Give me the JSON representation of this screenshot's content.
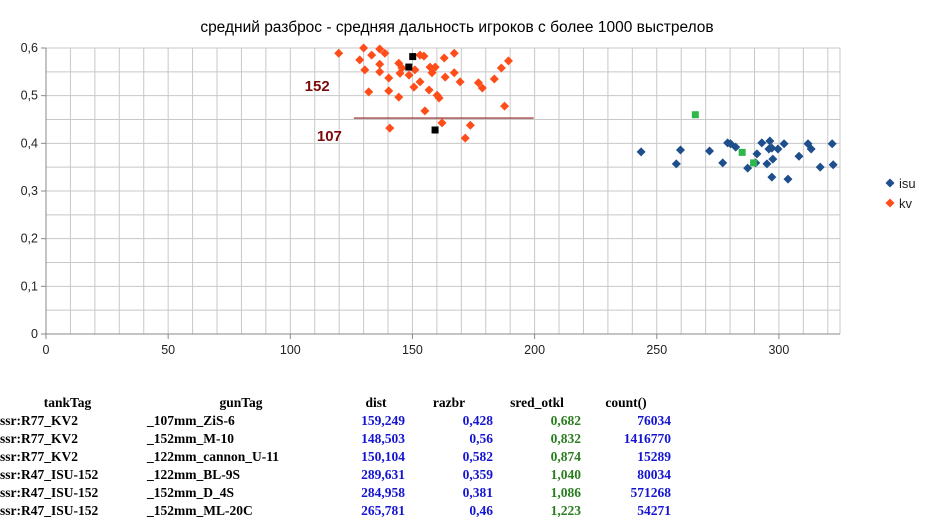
{
  "chart_data": {
    "type": "scatter",
    "title": "средний разброс - средняя дальность игроков с более 1000 выстрелов",
    "xlabel": "",
    "ylabel": "",
    "xlim": [
      0,
      325
    ],
    "ylim": [
      0,
      0.6
    ],
    "x_ticks": [
      "0",
      "50",
      "100",
      "150",
      "200",
      "250",
      "300"
    ],
    "x_tick_values": [
      0,
      50,
      100,
      150,
      200,
      250,
      300
    ],
    "y_ticks": [
      "0",
      "0,1",
      "0,2",
      "0,3",
      "0,4",
      "0,5",
      "0,6"
    ],
    "y_tick_values": [
      0,
      0.1,
      0.2,
      0.3,
      0.4,
      0.5,
      0.6
    ],
    "grid": true,
    "legend_position": "right",
    "series": [
      {
        "name": "isu",
        "color": "#1f4e8c",
        "marker": "diamond",
        "points": [
          [
            243.6,
            0.382
          ],
          [
            258.0,
            0.357
          ],
          [
            259.7,
            0.386
          ],
          [
            271.6,
            0.384
          ],
          [
            277.0,
            0.359
          ],
          [
            279.0,
            0.401
          ],
          [
            280.2,
            0.399
          ],
          [
            282.3,
            0.392
          ],
          [
            287.2,
            0.348
          ],
          [
            291.0,
            0.378
          ],
          [
            290.5,
            0.359
          ],
          [
            293.0,
            0.401
          ],
          [
            296.3,
            0.405
          ],
          [
            295.9,
            0.388
          ],
          [
            297.1,
            0.39
          ],
          [
            295.1,
            0.357
          ],
          [
            297.5,
            0.367
          ],
          [
            297.1,
            0.329
          ],
          [
            299.6,
            0.388
          ],
          [
            302.1,
            0.399
          ],
          [
            303.7,
            0.325
          ],
          [
            308.2,
            0.373
          ],
          [
            311.9,
            0.399
          ],
          [
            313.2,
            0.388
          ],
          [
            316.9,
            0.35
          ],
          [
            321.8,
            0.399
          ],
          [
            322.2,
            0.355
          ]
        ]
      },
      {
        "name": "kv",
        "color": "#ff4d1a",
        "marker": "diamond",
        "points": [
          [
            119.8,
            0.589
          ],
          [
            130.0,
            0.6
          ],
          [
            128.4,
            0.575
          ],
          [
            130.5,
            0.554
          ],
          [
            132.1,
            0.508
          ],
          [
            133.3,
            0.585
          ],
          [
            136.6,
            0.598
          ],
          [
            136.6,
            0.566
          ],
          [
            136.6,
            0.55
          ],
          [
            138.7,
            0.589
          ],
          [
            140.3,
            0.537
          ],
          [
            140.3,
            0.51
          ],
          [
            144.4,
            0.497
          ],
          [
            140.7,
            0.432
          ],
          [
            144.4,
            0.568
          ],
          [
            144.9,
            0.547
          ],
          [
            145.7,
            0.558
          ],
          [
            148.6,
            0.543
          ],
          [
            150.6,
            0.518
          ],
          [
            151.0,
            0.554
          ],
          [
            153.1,
            0.585
          ],
          [
            154.7,
            0.583
          ],
          [
            153.1,
            0.529
          ],
          [
            156.8,
            0.512
          ],
          [
            155.1,
            0.468
          ],
          [
            157.2,
            0.56
          ],
          [
            158.0,
            0.548
          ],
          [
            159.3,
            0.56
          ],
          [
            160.1,
            0.501
          ],
          [
            160.9,
            0.495
          ],
          [
            162.1,
            0.443
          ],
          [
            163.0,
            0.579
          ],
          [
            163.4,
            0.539
          ],
          [
            167.1,
            0.589
          ],
          [
            167.1,
            0.548
          ],
          [
            169.5,
            0.529
          ],
          [
            173.7,
            0.438
          ],
          [
            171.6,
            0.411
          ],
          [
            177.0,
            0.527
          ],
          [
            178.6,
            0.516
          ],
          [
            183.5,
            0.535
          ],
          [
            186.4,
            0.558
          ],
          [
            189.3,
            0.573
          ],
          [
            187.7,
            0.478
          ]
        ]
      }
    ],
    "highlight_points": {
      "kv_black": {
        "color": "#000000",
        "points": [
          [
            159.249,
            0.428
          ],
          [
            148.503,
            0.56
          ],
          [
            150.104,
            0.582
          ]
        ]
      },
      "isu_green": {
        "color": "#2eb84a",
        "points": [
          [
            289.631,
            0.359
          ],
          [
            284.958,
            0.381
          ],
          [
            265.781,
            0.46
          ]
        ]
      }
    },
    "reference_line": {
      "x_from": 126,
      "x_to": 199.6,
      "y": 0.453,
      "color": "#8b1a1a"
    },
    "annotations": [
      {
        "text": "152",
        "x": 111,
        "y": 0.51
      },
      {
        "text": "107",
        "x": 116,
        "y": 0.405
      }
    ]
  },
  "table": {
    "headers": [
      "tankTag",
      "gunTag",
      "dist",
      "razbr",
      "sred_otkl",
      "count()"
    ],
    "rows": [
      [
        "ssr:R77_KV2",
        "_107mm_ZiS-6",
        "159,249",
        "0,428",
        "0,682",
        "76034"
      ],
      [
        "ssr:R77_KV2",
        "_152mm_M-10",
        "148,503",
        "0,56",
        "0,832",
        "1416770"
      ],
      [
        "ssr:R77_KV2",
        "_122mm_cannon_U-11",
        "150,104",
        "0,582",
        "0,874",
        "15289"
      ],
      [
        "ssr:R47_ISU-152",
        "_122mm_BL-9S",
        "289,631",
        "0,359",
        "1,040",
        "80034"
      ],
      [
        "ssr:R47_ISU-152",
        "_152mm_D_4S",
        "284,958",
        "0,381",
        "1,086",
        "571268"
      ],
      [
        "ssr:R47_ISU-152",
        "_152mm_ML-20C",
        "265,781",
        "0,46",
        "1,223",
        "54271"
      ]
    ]
  }
}
